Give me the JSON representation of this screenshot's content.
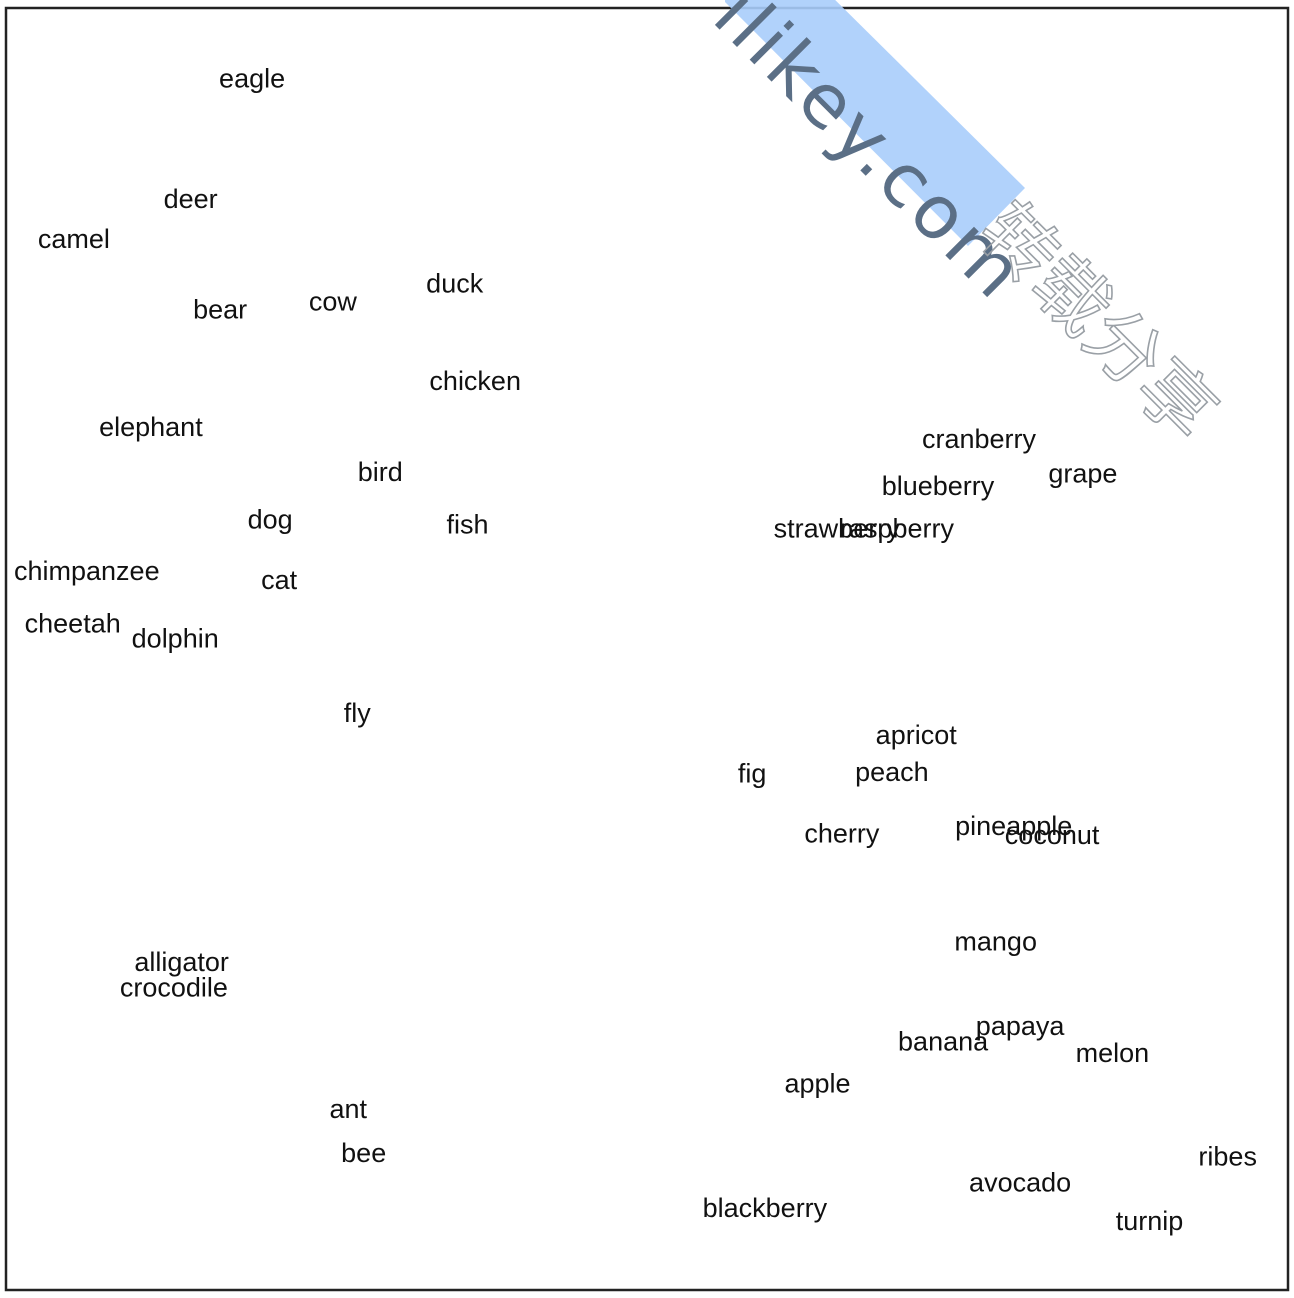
{
  "chart_data": {
    "type": "scatter",
    "title": "",
    "xlabel": "",
    "ylabel": "",
    "xlim": [
      0,
      100
    ],
    "ylim": [
      0,
      100
    ],
    "grid": false,
    "legend": "none",
    "marker": "text-label",
    "points": [
      {
        "label": "eagle",
        "x": 19.2,
        "y": 94.5
      },
      {
        "label": "deer",
        "x": 14.4,
        "y": 85.1
      },
      {
        "label": "camel",
        "x": 5.3,
        "y": 82.0
      },
      {
        "label": "bear",
        "x": 16.7,
        "y": 76.5
      },
      {
        "label": "cow",
        "x": 25.5,
        "y": 77.1
      },
      {
        "label": "duck",
        "x": 35.0,
        "y": 78.5
      },
      {
        "label": "chicken",
        "x": 36.6,
        "y": 70.9
      },
      {
        "label": "elephant",
        "x": 11.3,
        "y": 67.3
      },
      {
        "label": "bird",
        "x": 29.2,
        "y": 63.8
      },
      {
        "label": "dog",
        "x": 20.6,
        "y": 60.1
      },
      {
        "label": "fish",
        "x": 36.0,
        "y": 59.7
      },
      {
        "label": "chimpanzee",
        "x": 6.3,
        "y": 56.1
      },
      {
        "label": "cat",
        "x": 21.3,
        "y": 55.4
      },
      {
        "label": "cheetah",
        "x": 5.2,
        "y": 52.0
      },
      {
        "label": "dolphin",
        "x": 13.2,
        "y": 50.8
      },
      {
        "label": "fly",
        "x": 27.4,
        "y": 45.0
      },
      {
        "label": "alligator",
        "x": 13.7,
        "y": 25.6
      },
      {
        "label": "crocodile",
        "x": 13.1,
        "y": 23.6
      },
      {
        "label": "ant",
        "x": 26.7,
        "y": 14.1
      },
      {
        "label": "bee",
        "x": 27.9,
        "y": 10.7
      },
      {
        "label": "cranberry",
        "x": 75.9,
        "y": 66.4
      },
      {
        "label": "grape",
        "x": 84.0,
        "y": 63.7
      },
      {
        "label": "blueberry",
        "x": 72.7,
        "y": 62.7
      },
      {
        "label": "strawberry",
        "x": 64.8,
        "y": 59.4
      },
      {
        "label": "raspberry",
        "x": 69.5,
        "y": 59.4
      },
      {
        "label": "apricot",
        "x": 71.0,
        "y": 43.3
      },
      {
        "label": "fig",
        "x": 58.2,
        "y": 40.3
      },
      {
        "label": "peach",
        "x": 69.1,
        "y": 40.4
      },
      {
        "label": "cherry",
        "x": 65.2,
        "y": 35.6
      },
      {
        "label": "pineapple",
        "x": 78.6,
        "y": 36.2
      },
      {
        "label": "coconut",
        "x": 81.6,
        "y": 35.5
      },
      {
        "label": "mango",
        "x": 77.2,
        "y": 27.2
      },
      {
        "label": "papaya",
        "x": 79.1,
        "y": 20.6
      },
      {
        "label": "banana",
        "x": 73.1,
        "y": 19.4
      },
      {
        "label": "melon",
        "x": 86.3,
        "y": 18.5
      },
      {
        "label": "apple",
        "x": 63.3,
        "y": 16.1
      },
      {
        "label": "ribes",
        "x": 95.3,
        "y": 10.4
      },
      {
        "label": "avocado",
        "x": 79.1,
        "y": 8.4
      },
      {
        "label": "blackberry",
        "x": 59.2,
        "y": 6.4
      },
      {
        "label": "turnip",
        "x": 89.2,
        "y": 5.4
      }
    ]
  },
  "watermark": {
    "latin": "ilikey.com",
    "cjk": "转载分享",
    "band_color": "#a9cdfb"
  }
}
